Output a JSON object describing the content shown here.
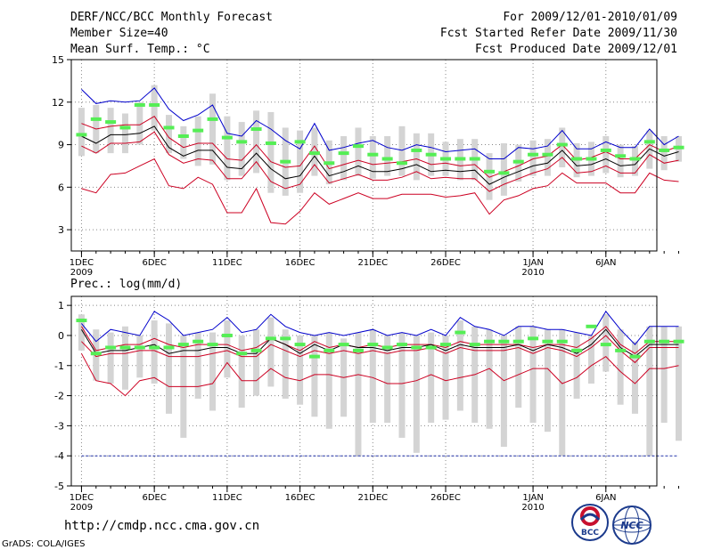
{
  "header": {
    "title": "DERF/NCC/BCC Monthly Forecast",
    "member_size": "Member Size=40",
    "variable": "Mean Surf. Temp.: °C",
    "period": "For 2009/12/01-2010/01/09",
    "fcst_started": "Fcst Started Refer Date 2009/11/30",
    "fcst_produced": "Fcst Produced Date 2009/12/01"
  },
  "footer": {
    "url": "http://cmdp.ncc.cma.gov.cn",
    "credit": "GrADS: COLA/IGES",
    "logo1_text": "BCC",
    "logo2_text": "NCC"
  },
  "colors": {
    "max_line": "#0000cc",
    "min_line": "#cc0022",
    "mean_line": "#000000",
    "bar": "#d4d4d4",
    "marker": "#55ee55",
    "grid": "#888888",
    "threshold": "#2233aa"
  },
  "chart_data": [
    {
      "type": "line",
      "title": "Mean Surf. Temp.: °C",
      "ylabel": "°C",
      "ylim": [
        1.5,
        15
      ],
      "yticks": [
        3,
        6,
        9,
        12,
        15
      ],
      "xlim": [
        0.3,
        40.5
      ],
      "xtick_positions": [
        1,
        6,
        11,
        16,
        21,
        26,
        32,
        37
      ],
      "xtick_labels": [
        "1DEC",
        "6DEC",
        "11DEC",
        "16DEC",
        "21DEC",
        "26DEC",
        "1JAN",
        "6JAN"
      ],
      "year_labels": [
        {
          "day": 1,
          "text": "2009"
        },
        {
          "day": 32,
          "text": "2010"
        }
      ],
      "grid": true,
      "series": [
        {
          "name": "max",
          "values": [
            12.9,
            11.9,
            12.1,
            12.0,
            12.1,
            13.0,
            11.5,
            10.7,
            11.1,
            11.8,
            9.8,
            9.6,
            10.7,
            10.1,
            9.3,
            8.7,
            10.5,
            8.6,
            8.8,
            9.1,
            9.3,
            8.8,
            8.6,
            9.0,
            8.8,
            8.5,
            8.6,
            8.7,
            8.0,
            8.0,
            8.8,
            8.7,
            8.9,
            10.0,
            8.7,
            8.7,
            9.2,
            8.8,
            8.8,
            10.1,
            9.0,
            9.6
          ]
        },
        {
          "name": "upper",
          "values": [
            10.5,
            10.1,
            10.3,
            10.4,
            10.4,
            11.0,
            9.5,
            8.8,
            9.1,
            9.1,
            8.0,
            7.9,
            9.0,
            7.8,
            7.4,
            7.5,
            8.9,
            7.3,
            7.6,
            7.9,
            7.6,
            7.7,
            7.8,
            8.0,
            7.6,
            7.7,
            7.5,
            7.6,
            6.7,
            7.1,
            7.5,
            8.0,
            8.2,
            9.0,
            7.9,
            8.1,
            8.5,
            8.0,
            8.0,
            9.0,
            8.5,
            8.9
          ]
        },
        {
          "name": "mean",
          "values": [
            9.6,
            9.1,
            9.7,
            9.7,
            9.8,
            10.3,
            8.8,
            8.2,
            8.6,
            8.6,
            7.4,
            7.3,
            8.4,
            7.3,
            6.6,
            6.8,
            8.2,
            6.8,
            7.1,
            7.5,
            7.1,
            7.1,
            7.3,
            7.6,
            7.1,
            7.2,
            7.1,
            7.2,
            6.2,
            6.7,
            7.1,
            7.5,
            7.7,
            8.6,
            7.5,
            7.6,
            8.0,
            7.5,
            7.6,
            8.7,
            8.2,
            8.5
          ]
        },
        {
          "name": "lower",
          "values": [
            8.9,
            8.4,
            9.1,
            9.1,
            9.2,
            9.9,
            8.3,
            7.7,
            8.0,
            7.9,
            6.6,
            6.6,
            7.8,
            6.4,
            5.9,
            6.2,
            7.6,
            6.3,
            6.6,
            6.9,
            6.5,
            6.5,
            6.7,
            7.1,
            6.6,
            6.7,
            6.6,
            6.6,
            5.7,
            6.2,
            6.6,
            7.0,
            7.3,
            8.1,
            7.0,
            7.1,
            7.5,
            7.0,
            7.0,
            8.3,
            7.7,
            7.9
          ]
        },
        {
          "name": "min",
          "values": [
            5.9,
            5.6,
            6.9,
            7.0,
            7.5,
            8.0,
            6.1,
            5.9,
            6.7,
            6.2,
            4.2,
            4.2,
            5.9,
            3.5,
            3.4,
            4.3,
            5.6,
            4.8,
            5.2,
            5.6,
            5.2,
            5.2,
            5.5,
            5.5,
            5.5,
            5.3,
            5.4,
            5.6,
            4.1,
            5.1,
            5.4,
            5.9,
            6.1,
            7.0,
            6.3,
            6.3,
            6.3,
            5.6,
            5.6,
            7.0,
            6.5,
            6.4
          ]
        },
        {
          "name": "marker",
          "values": [
            9.7,
            10.8,
            10.6,
            10.2,
            11.8,
            11.8,
            10.2,
            9.6,
            10.0,
            10.8,
            9.5,
            9.2,
            10.1,
            9.1,
            7.8,
            9.2,
            8.4,
            7.7,
            8.4,
            8.9,
            8.3,
            8.0,
            7.7,
            8.6,
            8.3,
            8.0,
            8.0,
            8.0,
            7.1,
            7.0,
            7.8,
            8.3,
            8.3,
            9.0,
            8.0,
            8.0,
            8.6,
            8.2,
            8.0,
            9.2,
            8.6,
            8.8
          ]
        },
        {
          "name": "bar_top",
          "values": [
            11.6,
            11.8,
            11.6,
            11.2,
            12.0,
            13.2,
            11.1,
            10.3,
            11.0,
            12.6,
            11.0,
            10.6,
            11.4,
            11.3,
            10.2,
            10.0,
            10.2,
            9.3,
            9.6,
            10.2,
            9.6,
            9.6,
            10.3,
            9.8,
            9.8,
            9.2,
            9.4,
            9.4,
            8.4,
            9.1,
            9.0,
            9.3,
            9.4,
            10.2,
            9.1,
            9.2,
            9.6,
            9.0,
            8.9,
            10.0,
            9.6,
            9.6
          ]
        },
        {
          "name": "bar_bottom",
          "values": [
            8.2,
            8.4,
            8.4,
            8.4,
            9.0,
            10.0,
            8.4,
            8.0,
            7.5,
            7.6,
            6.5,
            6.8,
            7.0,
            5.6,
            5.4,
            5.6,
            6.8,
            6.2,
            6.5,
            6.8,
            6.6,
            6.8,
            6.8,
            6.5,
            6.8,
            6.8,
            6.5,
            6.5,
            5.1,
            5.4,
            6.4,
            6.8,
            6.8,
            7.4,
            6.7,
            6.8,
            7.0,
            6.7,
            6.8,
            7.3,
            7.2,
            7.8
          ]
        }
      ]
    },
    {
      "type": "line",
      "title": "Prec.: log(mm/d)",
      "ylabel": "log(mm/d)",
      "ylim": [
        -5,
        1.3
      ],
      "yticks": [
        -5,
        -4,
        -3,
        -2,
        -1,
        0,
        1
      ],
      "xlim": [
        0.3,
        40.5
      ],
      "xtick_positions": [
        1,
        6,
        11,
        16,
        21,
        26,
        32,
        37
      ],
      "xtick_labels": [
        "1DEC",
        "6DEC",
        "11DEC",
        "16DEC",
        "21DEC",
        "26DEC",
        "1JAN",
        "6JAN"
      ],
      "year_labels": [
        {
          "day": 1,
          "text": "2009"
        },
        {
          "day": 32,
          "text": "2010"
        }
      ],
      "grid": true,
      "threshold": -4,
      "series": [
        {
          "name": "max",
          "values": [
            0.4,
            -0.2,
            0.2,
            0.1,
            0.0,
            0.8,
            0.5,
            0.0,
            0.1,
            0.2,
            0.6,
            0.1,
            0.2,
            0.7,
            0.3,
            0.1,
            0.0,
            0.1,
            0.0,
            0.1,
            0.2,
            0.0,
            0.1,
            0.0,
            0.2,
            0.0,
            0.6,
            0.3,
            0.2,
            0.0,
            0.3,
            0.3,
            0.2,
            0.2,
            0.1,
            0.0,
            0.8,
            0.2,
            -0.3,
            0.3,
            0.3,
            0.3
          ]
        },
        {
          "name": "upper",
          "values": [
            0.3,
            -0.5,
            -0.4,
            -0.3,
            -0.3,
            -0.1,
            -0.3,
            -0.4,
            -0.3,
            -0.3,
            -0.3,
            -0.5,
            -0.4,
            -0.1,
            -0.3,
            -0.5,
            -0.2,
            -0.4,
            -0.3,
            -0.4,
            -0.3,
            -0.4,
            -0.3,
            -0.3,
            -0.3,
            -0.4,
            -0.2,
            -0.3,
            -0.3,
            -0.3,
            -0.3,
            -0.4,
            -0.3,
            -0.3,
            -0.4,
            -0.1,
            0.3,
            -0.3,
            -0.6,
            -0.2,
            -0.2,
            -0.2
          ]
        },
        {
          "name": "mean",
          "values": [
            0.2,
            -0.6,
            -0.5,
            -0.5,
            -0.4,
            -0.3,
            -0.6,
            -0.5,
            -0.5,
            -0.4,
            -0.4,
            -0.6,
            -0.6,
            -0.1,
            -0.3,
            -0.6,
            -0.3,
            -0.5,
            -0.3,
            -0.4,
            -0.4,
            -0.5,
            -0.4,
            -0.4,
            -0.3,
            -0.5,
            -0.3,
            -0.4,
            -0.4,
            -0.4,
            -0.3,
            -0.5,
            -0.3,
            -0.4,
            -0.6,
            -0.3,
            0.2,
            -0.4,
            -0.7,
            -0.3,
            -0.3,
            -0.3
          ]
        },
        {
          "name": "lower",
          "values": [
            -0.2,
            -0.7,
            -0.6,
            -0.6,
            -0.5,
            -0.5,
            -0.7,
            -0.7,
            -0.7,
            -0.6,
            -0.5,
            -0.7,
            -0.7,
            -0.3,
            -0.5,
            -0.7,
            -0.5,
            -0.6,
            -0.5,
            -0.6,
            -0.5,
            -0.6,
            -0.5,
            -0.5,
            -0.4,
            -0.6,
            -0.4,
            -0.5,
            -0.5,
            -0.5,
            -0.4,
            -0.6,
            -0.4,
            -0.5,
            -0.7,
            -0.4,
            0.0,
            -0.5,
            -0.9,
            -0.4,
            -0.4,
            -0.4
          ]
        },
        {
          "name": "min",
          "values": [
            -0.6,
            -1.5,
            -1.6,
            -2.0,
            -1.5,
            -1.4,
            -1.7,
            -1.7,
            -1.7,
            -1.6,
            -0.9,
            -1.5,
            -1.5,
            -1.1,
            -1.4,
            -1.5,
            -1.3,
            -1.3,
            -1.4,
            -1.3,
            -1.4,
            -1.6,
            -1.6,
            -1.5,
            -1.3,
            -1.5,
            -1.4,
            -1.3,
            -1.1,
            -1.5,
            -1.3,
            -1.1,
            -1.1,
            -1.6,
            -1.4,
            -1.0,
            -0.7,
            -1.2,
            -1.6,
            -1.1,
            -1.1,
            -1.0
          ]
        },
        {
          "name": "marker",
          "values": [
            0.5,
            -0.6,
            -0.4,
            -0.4,
            -0.4,
            -0.4,
            -0.4,
            -0.3,
            -0.2,
            -0.3,
            0.0,
            -0.6,
            -0.5,
            -0.1,
            -0.1,
            -0.3,
            -0.7,
            -0.5,
            -0.3,
            -0.5,
            -0.3,
            -0.4,
            -0.3,
            -0.4,
            -0.4,
            -0.3,
            0.1,
            -0.3,
            -0.2,
            -0.2,
            -0.2,
            -0.1,
            -0.2,
            -0.2,
            -0.5,
            0.3,
            -0.3,
            -0.5,
            -0.7,
            -0.2,
            -0.2,
            -0.2
          ]
        },
        {
          "name": "bar_top",
          "values": [
            0.7,
            0.2,
            0.1,
            0.3,
            0.0,
            0.5,
            0.4,
            0.0,
            0.1,
            0.1,
            0.5,
            0.0,
            0.2,
            0.6,
            0.2,
            0.0,
            0.0,
            0.1,
            -0.1,
            0.1,
            0.2,
            0.0,
            0.1,
            0.0,
            0.1,
            0.0,
            0.5,
            0.3,
            0.2,
            0.0,
            0.3,
            0.3,
            0.2,
            0.2,
            0.1,
            0.0,
            0.7,
            0.2,
            -0.2,
            0.3,
            0.3,
            0.3
          ]
        },
        {
          "name": "bar_bottom",
          "values": [
            -0.5,
            -1.5,
            -1.6,
            -1.8,
            -1.4,
            -1.6,
            -2.6,
            -3.4,
            -2.1,
            -2.5,
            -1.4,
            -2.4,
            -2.0,
            -1.7,
            -2.1,
            -2.3,
            -2.7,
            -3.1,
            -2.7,
            -4.0,
            -2.9,
            -2.9,
            -3.4,
            -3.9,
            -2.9,
            -2.8,
            -2.5,
            -2.9,
            -3.1,
            -3.7,
            -2.4,
            -2.9,
            -3.2,
            -4.0,
            -2.1,
            -1.6,
            -1.2,
            -2.3,
            -2.6,
            -4.0,
            -2.9,
            -3.5
          ]
        }
      ]
    }
  ]
}
